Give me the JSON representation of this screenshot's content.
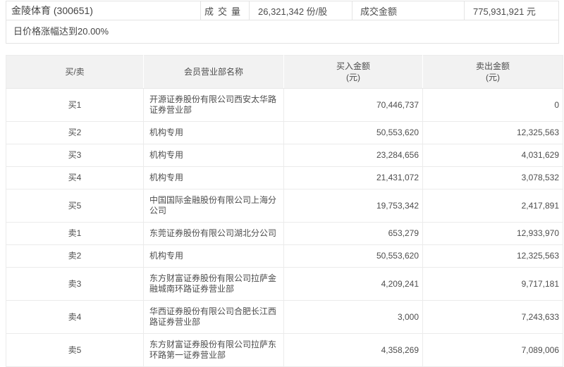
{
  "summary": {
    "stock_name": "金陵体育 (300651)",
    "volume_label": "成交量",
    "volume_value": "26,321,342 份/股",
    "turnover_label": "成交金额",
    "turnover_value": "775,931,921 元",
    "note": "日价格涨幅达到20.00%"
  },
  "table": {
    "headers": {
      "side": "买/卖",
      "member": "会员营业部名称",
      "buy": "买入金额",
      "sell": "卖出金额",
      "unit": "(元)"
    },
    "rows": [
      {
        "side": "买1",
        "member": "开源证券股份有限公司西安太华路证券营业部",
        "buy": "70,446,737",
        "sell": "0"
      },
      {
        "side": "买2",
        "member": "机构专用",
        "buy": "50,553,620",
        "sell": "12,325,563"
      },
      {
        "side": "买3",
        "member": "机构专用",
        "buy": "23,284,656",
        "sell": "4,031,629"
      },
      {
        "side": "买4",
        "member": "机构专用",
        "buy": "21,431,072",
        "sell": "3,078,532"
      },
      {
        "side": "买5",
        "member": "中国国际金融股份有限公司上海分公司",
        "buy": "19,753,342",
        "sell": "2,417,891"
      },
      {
        "side": "卖1",
        "member": "东莞证券股份有限公司湖北分公司",
        "buy": "653,279",
        "sell": "12,933,970"
      },
      {
        "side": "卖2",
        "member": "机构专用",
        "buy": "50,553,620",
        "sell": "12,325,563"
      },
      {
        "side": "卖3",
        "member": "东方财富证券股份有限公司拉萨金融城南环路证券营业部",
        "buy": "4,209,241",
        "sell": "9,717,181"
      },
      {
        "side": "卖4",
        "member": "华西证券股份有限公司合肥长江西路证券营业部",
        "buy": "3,000",
        "sell": "7,243,633"
      },
      {
        "side": "卖5",
        "member": "东方财富证券股份有限公司拉萨东环路第一证券营业部",
        "buy": "4,358,269",
        "sell": "7,089,006"
      }
    ]
  },
  "colors": {
    "border": "#e8e8e8",
    "header_bg": "#f2f2f2",
    "text": "#4d4d4d"
  }
}
